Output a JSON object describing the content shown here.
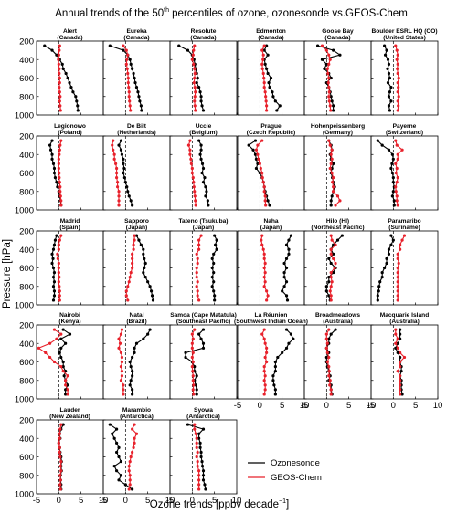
{
  "figure": {
    "title_pre": "Annual trends of the 50",
    "title_sup": "th",
    "title_post": " percentiles of ozone, ozonesonde vs.GEOS-Chem",
    "ylabel": "Pressure [hPa]",
    "xlabel_pre": "Ozone trends [ppbv decade",
    "xlabel_sup": "−1",
    "xlabel_post": "]"
  },
  "legend": [
    {
      "label": "Ozonesonde",
      "color": "#000000"
    },
    {
      "label": "GEOS-Chem",
      "color": "#e8212b"
    }
  ],
  "chart_data": {
    "type": "line",
    "xlim": [
      -5,
      10
    ],
    "ylim": [
      1000,
      200
    ],
    "xticks": [
      "-5",
      "0",
      "5",
      "10"
    ],
    "yticks": [
      "200",
      "400",
      "600",
      "800",
      "1000"
    ],
    "pressure_levels": [
      250,
      300,
      350,
      400,
      450,
      500,
      550,
      600,
      650,
      700,
      750,
      800,
      850,
      900,
      950
    ],
    "series_names": [
      "Ozonesonde",
      "GEOS-Chem"
    ],
    "panels": [
      {
        "name1": "Alert",
        "name2": "(Canada)",
        "sonde": [
          -3.2,
          -1.5,
          -0.5,
          0.2,
          0.8,
          1.0,
          1.6,
          2.0,
          2.4,
          2.8,
          3.2,
          3.8,
          4.0,
          4.2,
          4.3
        ],
        "model": [
          0.2,
          0.1,
          0.0,
          -0.1,
          0.0,
          0.1,
          0.1,
          0.2,
          0.2,
          0.1,
          0.2,
          0.3,
          0.2,
          0.3,
          0.4
        ]
      },
      {
        "name1": "Eureka",
        "name2": "(Canada)",
        "sonde": [
          -3.5,
          -0.5,
          0.5,
          1.0,
          1.2,
          1.5,
          1.8,
          2.0,
          2.2,
          2.5,
          2.8,
          3.0,
          3.2,
          3.5,
          3.6
        ],
        "model": [
          -0.5,
          0.2,
          0.5,
          0.3,
          0.2,
          0.4,
          0.5,
          0.6,
          0.6,
          0.7,
          0.8,
          0.8,
          0.9,
          1.0,
          1.1
        ]
      },
      {
        "name1": "Resolute",
        "name2": "(Canada)",
        "sonde": [
          -3.0,
          -1.0,
          0.0,
          0.4,
          0.6,
          0.8,
          1.0,
          1.2,
          1.0,
          1.5,
          1.8,
          2.0,
          2.0,
          2.2,
          2.5
        ],
        "model": [
          0.5,
          0.3,
          0.2,
          0.0,
          0.3,
          0.5,
          0.6,
          0.5,
          0.4,
          0.6,
          0.7,
          0.6,
          0.5,
          0.6,
          0.7
        ]
      },
      {
        "name1": "Edmonton",
        "name2": "(Canada)",
        "sonde": [
          1.5,
          1.0,
          1.8,
          1.0,
          1.2,
          1.5,
          1.8,
          2.5,
          2.0,
          2.2,
          2.8,
          3.0,
          3.5,
          4.5,
          3.8
        ],
        "model": [
          1.0,
          0.5,
          0.8,
          0.7,
          0.5,
          0.6,
          0.8,
          0.9,
          1.0,
          1.0,
          1.2,
          1.3,
          1.4,
          1.5,
          1.5
        ]
      },
      {
        "name1": "Goose Bay",
        "name2": "(Canada)",
        "sonde": [
          -2.0,
          1.5,
          3.0,
          -1.0,
          0.0,
          -0.5,
          0.5,
          1.0,
          0.0,
          0.5,
          0.8,
          1.0,
          1.2,
          1.5,
          1.5
        ],
        "model": [
          -1.0,
          0.0,
          0.5,
          0.8,
          0.5,
          0.2,
          0.3,
          0.5,
          0.4,
          0.5,
          0.6,
          0.5,
          0.6,
          0.8,
          0.9
        ]
      },
      {
        "name1": "Boulder ESRL HQ (CO)",
        "name2": "(United States)",
        "sonde": [
          -2.0,
          -1.5,
          -1.8,
          -1.2,
          -1.0,
          -1.3,
          -1.0,
          -0.8,
          -1.2,
          -0.5,
          -0.8,
          -1.0,
          -0.5,
          -1.0,
          -0.8
        ],
        "model": [
          0.5,
          0.8,
          1.0,
          0.8,
          1.0,
          0.9,
          1.0,
          1.2,
          1.0,
          1.1,
          1.0,
          1.2,
          1.0,
          1.1,
          1.0
        ]
      },
      {
        "name1": "Legionowo",
        "name2": "(Poland)",
        "sonde": [
          -1.5,
          -2.0,
          -1.8,
          -1.5,
          -1.5,
          -1.2,
          -1.0,
          -1.0,
          -0.8,
          -0.5,
          -0.3,
          0.0,
          0.2,
          0.4,
          0.5
        ],
        "model": [
          0.5,
          0.3,
          0.2,
          0.1,
          0.0,
          0.0,
          0.0,
          0.1,
          0.1,
          0.2,
          0.3,
          0.3,
          0.4,
          0.5,
          0.5
        ]
      },
      {
        "name1": "De Bilt",
        "name2": "(Netherlands)",
        "sonde": [
          -1.0,
          -1.5,
          -1.0,
          -0.8,
          -0.5,
          -0.5,
          -0.3,
          -0.5,
          -0.2,
          0.0,
          0.3,
          0.5,
          0.8,
          1.2,
          1.5
        ],
        "model": [
          -2.8,
          -3.0,
          -2.8,
          -2.5,
          -2.5,
          -2.2,
          -2.0,
          -2.0,
          -2.0,
          -1.8,
          -1.8,
          -1.5,
          -1.5,
          -1.5,
          -1.5
        ]
      },
      {
        "name1": "Uccle",
        "name2": "(Belgium)",
        "sonde": [
          1.5,
          2.0,
          2.0,
          1.8,
          2.0,
          2.3,
          2.5,
          2.2,
          2.8,
          2.5,
          3.0,
          3.2,
          3.0,
          3.5,
          3.6
        ],
        "model": [
          -0.5,
          -0.8,
          -0.5,
          -0.5,
          -0.3,
          -0.2,
          0.0,
          0.0,
          0.2,
          0.3,
          0.4,
          0.5,
          0.6,
          0.7,
          0.8
        ]
      },
      {
        "name1": "Prague",
        "name2": "(Czech Republic)",
        "sonde": [
          -1.0,
          -2.5,
          -1.5,
          -1.0,
          -0.8,
          -0.5,
          -0.8,
          0.0,
          0.5,
          0.8,
          1.0,
          1.2,
          1.5,
          1.8,
          2.2
        ],
        "model": [
          0.5,
          -0.5,
          -0.8,
          -0.5,
          -0.3,
          0.0,
          0.2,
          0.5,
          0.6,
          0.8,
          1.0,
          1.0,
          1.2,
          1.2,
          1.3
        ]
      },
      {
        "name1": "Hohenpeissenberg",
        "name2": "(Germany)",
        "sonde": [
          0.5,
          1.0,
          1.2,
          0.8,
          1.0,
          1.5,
          1.2,
          1.0,
          1.3,
          1.5,
          1.8,
          1.5,
          1.2,
          1.0,
          1.0
        ],
        "model": [
          0.5,
          0.8,
          1.2,
          1.0,
          1.2,
          1.0,
          0.8,
          1.2,
          1.5,
          1.3,
          1.5,
          1.5,
          2.5,
          3.0,
          2.0
        ]
      },
      {
        "name1": "Payerne",
        "name2": "(Switzerland)",
        "sonde": [
          -3.5,
          -2.5,
          -1.0,
          -0.2,
          0.0,
          -0.3,
          -0.5,
          -0.2,
          0.0,
          0.0,
          0.2,
          0.0,
          -0.2,
          0.2,
          0.2
        ],
        "model": [
          0.5,
          0.8,
          2.0,
          1.0,
          1.0,
          0.5,
          0.8,
          0.6,
          1.0,
          0.8,
          0.5,
          0.6,
          0.8,
          0.8,
          1.0
        ]
      },
      {
        "name1": "Madrid",
        "name2": "(Spain)",
        "sonde": [
          -0.5,
          -0.8,
          -1.0,
          -1.2,
          -1.5,
          -1.3,
          -1.5,
          -1.2,
          -1.0,
          -1.2,
          -1.0,
          -1.2,
          -1.0,
          -1.0,
          -1.2
        ],
        "model": [
          0.5,
          0.2,
          0.0,
          0.0,
          -0.3,
          -0.2,
          0.0,
          0.0,
          0.0,
          0.1,
          0.0,
          0.1,
          0.2,
          0.2,
          0.2
        ]
      },
      {
        "name1": "Sapporo",
        "name2": "(Japan)",
        "sonde": [
          2.5,
          3.0,
          3.5,
          4.0,
          4.0,
          4.2,
          4.5,
          4.2,
          4.0,
          4.5,
          5.0,
          5.5,
          5.8,
          6.0,
          6.2
        ],
        "model": [
          2.0,
          2.0,
          1.8,
          1.8,
          1.5,
          1.5,
          1.5,
          1.5,
          1.2,
          1.0,
          0.8,
          0.5,
          0.2,
          0.2,
          0.5
        ]
      },
      {
        "name1": "Tateno (Tsukuba)",
        "name2": "(Japan)",
        "sonde": [
          5.0,
          5.5,
          5.2,
          5.5,
          4.8,
          4.5,
          4.8,
          4.5,
          4.8,
          4.5,
          4.8,
          4.5,
          4.8,
          5.0,
          5.0
        ],
        "model": [
          2.0,
          1.5,
          1.5,
          1.5,
          1.0,
          1.2,
          1.2,
          1.0,
          1.0,
          1.0,
          1.2,
          1.0,
          1.2,
          1.2,
          1.5
        ]
      },
      {
        "name1": "Naha",
        "name2": "(Japan)",
        "sonde": [
          7.0,
          6.5,
          6.0,
          6.5,
          6.5,
          6.0,
          5.5,
          6.0,
          5.5,
          5.5,
          6.0,
          5.5,
          5.0,
          6.0,
          6.2
        ],
        "model": [
          0.5,
          0.3,
          0.5,
          0.8,
          1.0,
          1.0,
          1.2,
          1.0,
          1.2,
          1.0,
          1.2,
          1.0,
          1.5,
          1.8,
          1.5
        ]
      },
      {
        "name1": "Hilo (HI)",
        "name2": "(Northeast Pacific)",
        "sonde": [
          3.5,
          2.5,
          1.5,
          1.0,
          1.5,
          0.5,
          1.0,
          2.0,
          1.5,
          0.5,
          0.5,
          0.0,
          0.0,
          0.5,
          0.8
        ],
        "model": [
          1.0,
          1.2,
          2.0,
          1.0,
          1.0,
          1.5,
          2.0,
          1.8,
          1.0,
          1.0,
          1.2,
          1.0,
          0.8,
          1.0,
          1.0
        ]
      },
      {
        "name1": "Paramaribo",
        "name2": "(Suriname)",
        "sonde": [
          -0.5,
          0.0,
          -0.5,
          -1.0,
          -1.0,
          -1.5,
          -1.5,
          -2.0,
          -2.5,
          -2.5,
          -3.0,
          -3.2,
          -3.3,
          -3.5,
          -3.5
        ],
        "model": [
          2.5,
          2.0,
          1.5,
          1.5,
          1.0,
          1.0,
          1.2,
          1.0,
          1.0,
          1.0,
          1.0,
          1.0,
          1.0,
          1.0,
          1.0
        ]
      },
      {
        "name1": "Nairobi",
        "name2": "(Kenya)",
        "sonde": [
          1.0,
          2.5,
          0.5,
          1.5,
          0.5,
          0.2,
          0.5,
          1.0,
          1.0,
          1.5,
          1.2,
          1.5,
          2.0,
          1.5,
          1.5
        ],
        "model": [
          -1.0,
          0.5,
          -0.5,
          -2.0,
          -4.5,
          -3.0,
          -2.0,
          -1.0,
          0.5,
          1.0,
          2.0,
          1.5,
          1.5,
          2.0,
          2.0
        ]
      },
      {
        "name1": "Natal",
        "name2": "(Brazil)",
        "sonde": [
          5.5,
          5.0,
          4.0,
          2.5,
          2.0,
          2.0,
          1.5,
          1.0,
          1.2,
          1.5,
          1.5,
          1.2,
          1.0,
          1.5,
          1.5
        ],
        "model": [
          -0.8,
          -1.0,
          -1.5,
          -1.2,
          -1.5,
          -1.0,
          -0.8,
          -0.8,
          -1.0,
          -0.8,
          -0.8,
          -1.0,
          -0.5,
          -0.5,
          -0.5
        ]
      },
      {
        "name1": "Samoa (Cape Matatula)",
        "name2": "(Southeast Pacific)",
        "sonde": [
          2.5,
          1.5,
          2.0,
          2.5,
          2.5,
          -1.5,
          -1.5,
          0.0,
          0.5,
          0.5,
          1.0,
          0.5,
          0.8,
          1.0,
          1.0
        ],
        "model": [
          0.5,
          0.0,
          0.2,
          0.0,
          0.0,
          0.2,
          0.0,
          0.2,
          0.0,
          0.1,
          0.2,
          0.2,
          0.3,
          0.2,
          0.3
        ]
      },
      {
        "name1": "La Réunion",
        "name2": "(Southwest Indian Ocean)",
        "sonde": [
          6.0,
          7.0,
          7.5,
          6.5,
          6.0,
          5.0,
          4.0,
          3.5,
          3.5,
          3.5,
          3.0,
          3.0,
          3.2,
          3.5,
          3.5
        ],
        "model": [
          1.0,
          0.5,
          1.0,
          1.2,
          1.5,
          1.5,
          1.2,
          1.5,
          1.0,
          1.0,
          1.2,
          1.0,
          1.2,
          1.2,
          1.0
        ]
      },
      {
        "name1": "Broadmeadows",
        "name2": "(Australia)",
        "sonde": [
          2.0,
          1.0,
          0.5,
          0.5,
          0.0,
          0.5,
          0.0,
          0.0,
          0.2,
          0.5,
          0.8,
          0.5,
          1.0,
          1.0,
          1.2
        ],
        "model": [
          0.5,
          0.0,
          0.0,
          0.2,
          0.0,
          0.2,
          0.5,
          0.2,
          0.5,
          0.6,
          0.5,
          0.8,
          0.7,
          1.0,
          1.0
        ]
      },
      {
        "name1": "Macquarie Island",
        "name2": "(Australia)",
        "sonde": [
          1.5,
          1.5,
          1.5,
          1.0,
          0.5,
          1.0,
          1.5,
          1.5,
          1.8,
          1.8,
          1.5,
          1.8,
          1.8,
          1.8,
          2.0
        ],
        "model": [
          0.5,
          0.5,
          1.0,
          0.5,
          1.0,
          1.5,
          2.5,
          1.5,
          1.5,
          1.0,
          1.5,
          1.5,
          1.5,
          1.5,
          1.5
        ]
      },
      {
        "name1": "Lauder",
        "name2": "(New Zealand)",
        "sonde": [
          1.0,
          0.5,
          0.2,
          0.3,
          0.0,
          0.2,
          0.3,
          0.5,
          0.6,
          0.5,
          0.6,
          0.4,
          0.4,
          0.5,
          0.5
        ],
        "model": [
          0.5,
          0.3,
          0.2,
          0.2,
          0.0,
          0.2,
          0.2,
          0.3,
          0.5,
          0.4,
          0.5,
          0.3,
          0.4,
          0.3,
          0.4
        ]
      },
      {
        "name1": "Marambio",
        "name2": "(Antarctica)",
        "sonde": [
          -3.5,
          -2.0,
          -3.0,
          -2.5,
          -2.0,
          -1.5,
          -2.0,
          -1.5,
          -1.0,
          -2.5,
          -2.0,
          -1.0,
          -1.5,
          0.0,
          1.5
        ],
        "model": [
          2.0,
          1.5,
          2.5,
          2.0,
          2.0,
          1.8,
          1.5,
          1.2,
          1.0,
          0.8,
          0.8,
          1.0,
          1.0,
          1.0,
          0.8
        ]
      },
      {
        "name1": "Syowa",
        "name2": "(Antarctica)",
        "sonde": [
          -1.0,
          2.5,
          1.5,
          1.5,
          1.8,
          1.8,
          2.0,
          2.0,
          2.2,
          2.3,
          2.5,
          2.5,
          2.5,
          2.8,
          3.0
        ],
        "model": [
          0.5,
          0.5,
          0.8,
          1.0,
          1.0,
          1.0,
          1.2,
          1.0,
          1.2,
          1.2,
          1.5,
          1.5,
          1.5,
          1.5,
          1.5
        ]
      }
    ]
  }
}
